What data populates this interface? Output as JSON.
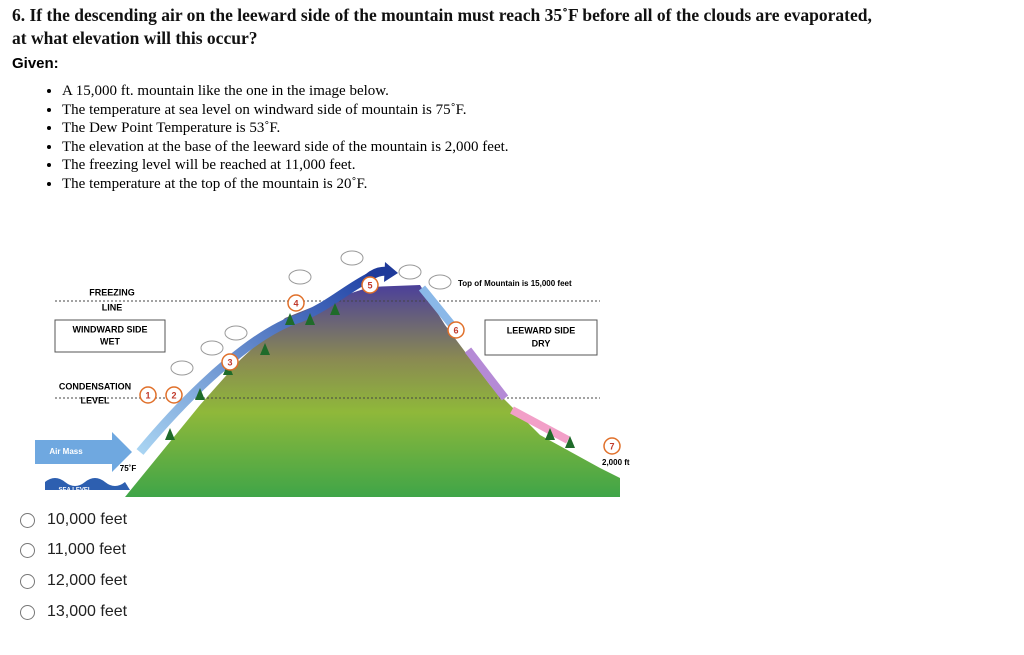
{
  "question": [
    "6. If the descending air on the leeward side of the mountain must reach 35˚F before all of the clouds are evaporated,",
    "at what elevation will this occur?"
  ],
  "given_label": "Given:",
  "given": [
    "A 15,000 ft. mountain like the one in the image below.",
    "The temperature at sea level on windward side of mountain is 75˚F.",
    "The Dew Point Temperature is 53˚F.",
    "The elevation at the base of the leeward side of the mountain is 2,000 feet.",
    "The freezing level will be reached at 11,000 feet.",
    "The temperature at the top of the mountain is 20˚F."
  ],
  "diagram": {
    "freezing_line": [
      "FREEZING",
      "LINE"
    ],
    "windward": [
      "WINDWARD SIDE",
      "WET"
    ],
    "condensation_level": [
      "CONDENSATION",
      "LEVEL"
    ],
    "air_mass": "Air Mass",
    "sea_temp": "75˚F",
    "sea_level": "SEA LEVEL",
    "top": "Top of Mountain is 15,000 feet",
    "leeward": [
      "LEEWARD SIDE",
      "DRY"
    ],
    "base": "2,000 ft",
    "markers": [
      "1",
      "2",
      "3",
      "4",
      "5",
      "6",
      "7"
    ]
  },
  "options": [
    "10,000 feet",
    "11,000 feet",
    "12,000 feet",
    "13,000 feet"
  ]
}
